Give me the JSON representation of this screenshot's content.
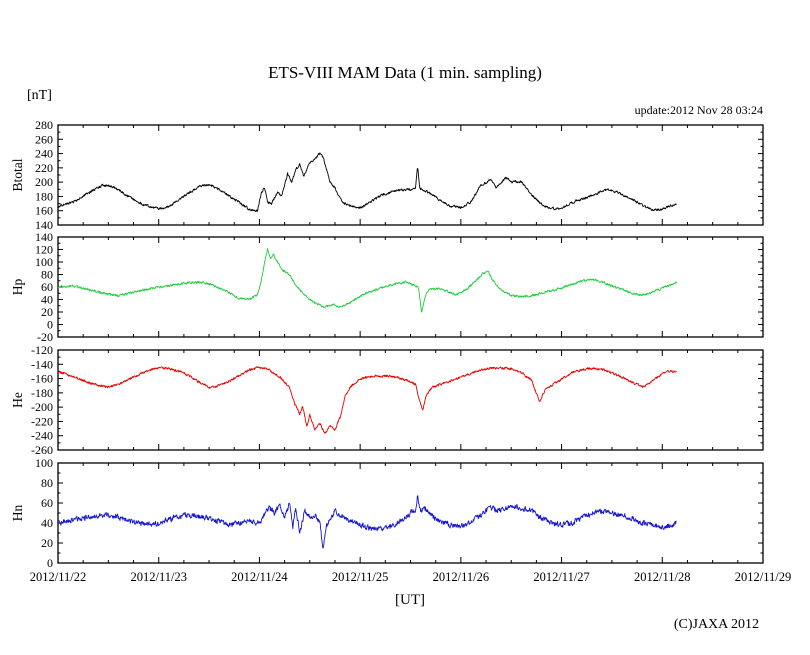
{
  "header": {
    "unit_label": "[nT]",
    "update_text": "update:2012 Nov 28 03:24"
  },
  "footer": {
    "copyright": "(C)JAXA 2012"
  },
  "chart_data": {
    "type": "line",
    "title": "ETS-VIII MAM Data (1 min. sampling)",
    "grid": "off",
    "legend": "none",
    "x": {
      "label": "[UT]",
      "range_days": [
        0,
        7
      ],
      "tick_labels": [
        "2012/11/22",
        "2012/11/23",
        "2012/11/24",
        "2012/11/25",
        "2012/11/26",
        "2012/11/27",
        "2012/11/28",
        "2012/11/29"
      ],
      "minor_ticks_per_day": 4,
      "data_end_day": 6.142
    },
    "panels": [
      {
        "name": "Btotal",
        "color": "#000000",
        "ylim": [
          140,
          280
        ],
        "yticks": [
          140,
          160,
          180,
          200,
          220,
          240,
          260,
          280
        ],
        "noise_amp": 1.5,
        "seed": 11,
        "points": [
          [
            0,
            166
          ],
          [
            0.15,
            172
          ],
          [
            0.3,
            185
          ],
          [
            0.45,
            196
          ],
          [
            0.55,
            193
          ],
          [
            0.7,
            180
          ],
          [
            0.85,
            168
          ],
          [
            1.0,
            163
          ],
          [
            1.1,
            166
          ],
          [
            1.25,
            180
          ],
          [
            1.4,
            194
          ],
          [
            1.5,
            196
          ],
          [
            1.6,
            190
          ],
          [
            1.75,
            176
          ],
          [
            1.9,
            162
          ],
          [
            1.98,
            160
          ],
          [
            2.02,
            185
          ],
          [
            2.05,
            193
          ],
          [
            2.08,
            172
          ],
          [
            2.12,
            170
          ],
          [
            2.18,
            186
          ],
          [
            2.22,
            180
          ],
          [
            2.28,
            212
          ],
          [
            2.32,
            200
          ],
          [
            2.36,
            218
          ],
          [
            2.4,
            225
          ],
          [
            2.44,
            208
          ],
          [
            2.5,
            228
          ],
          [
            2.55,
            232
          ],
          [
            2.6,
            241
          ],
          [
            2.63,
            235
          ],
          [
            2.66,
            222
          ],
          [
            2.7,
            200
          ],
          [
            2.75,
            192
          ],
          [
            2.82,
            172
          ],
          [
            2.9,
            167
          ],
          [
            3.0,
            164
          ],
          [
            3.1,
            172
          ],
          [
            3.2,
            181
          ],
          [
            3.35,
            188
          ],
          [
            3.5,
            190
          ],
          [
            3.55,
            192
          ],
          [
            3.57,
            224
          ],
          [
            3.59,
            192
          ],
          [
            3.7,
            184
          ],
          [
            3.8,
            174
          ],
          [
            3.9,
            166
          ],
          [
            4.0,
            165
          ],
          [
            4.1,
            172
          ],
          [
            4.2,
            196
          ],
          [
            4.3,
            203
          ],
          [
            4.35,
            192
          ],
          [
            4.45,
            207
          ],
          [
            4.5,
            200
          ],
          [
            4.6,
            201
          ],
          [
            4.7,
            183
          ],
          [
            4.8,
            169
          ],
          [
            4.9,
            163
          ],
          [
            5.0,
            164
          ],
          [
            5.15,
            174
          ],
          [
            5.3,
            181
          ],
          [
            5.45,
            190
          ],
          [
            5.55,
            186
          ],
          [
            5.7,
            176
          ],
          [
            5.8,
            168
          ],
          [
            5.9,
            161
          ],
          [
            6.0,
            162
          ],
          [
            6.1,
            168
          ],
          [
            6.142,
            170
          ]
        ]
      },
      {
        "name": "Hp",
        "color": "#1fcb3c",
        "ylim": [
          -20,
          140
        ],
        "yticks": [
          -20,
          0,
          20,
          40,
          60,
          80,
          100,
          120,
          140
        ],
        "noise_amp": 1.6,
        "seed": 22,
        "points": [
          [
            0,
            60
          ],
          [
            0.15,
            62
          ],
          [
            0.3,
            56
          ],
          [
            0.45,
            50
          ],
          [
            0.6,
            46
          ],
          [
            0.75,
            52
          ],
          [
            0.9,
            57
          ],
          [
            1.1,
            62
          ],
          [
            1.25,
            66
          ],
          [
            1.4,
            68
          ],
          [
            1.5,
            65
          ],
          [
            1.65,
            55
          ],
          [
            1.8,
            42
          ],
          [
            1.9,
            40
          ],
          [
            1.98,
            48
          ],
          [
            2.02,
            70
          ],
          [
            2.05,
            100
          ],
          [
            2.08,
            120
          ],
          [
            2.11,
            105
          ],
          [
            2.14,
            112
          ],
          [
            2.18,
            100
          ],
          [
            2.22,
            88
          ],
          [
            2.3,
            80
          ],
          [
            2.35,
            65
          ],
          [
            2.42,
            52
          ],
          [
            2.5,
            40
          ],
          [
            2.58,
            32
          ],
          [
            2.65,
            28
          ],
          [
            2.72,
            32
          ],
          [
            2.8,
            29
          ],
          [
            2.88,
            33
          ],
          [
            2.95,
            40
          ],
          [
            3.05,
            50
          ],
          [
            3.2,
            58
          ],
          [
            3.35,
            65
          ],
          [
            3.45,
            68
          ],
          [
            3.55,
            62
          ],
          [
            3.58,
            58
          ],
          [
            3.61,
            18
          ],
          [
            3.64,
            42
          ],
          [
            3.68,
            55
          ],
          [
            3.78,
            58
          ],
          [
            3.88,
            52
          ],
          [
            3.95,
            48
          ],
          [
            4.05,
            55
          ],
          [
            4.15,
            70
          ],
          [
            4.22,
            82
          ],
          [
            4.27,
            85
          ],
          [
            4.32,
            70
          ],
          [
            4.4,
            55
          ],
          [
            4.5,
            47
          ],
          [
            4.6,
            44
          ],
          [
            4.7,
            46
          ],
          [
            4.8,
            50
          ],
          [
            4.95,
            56
          ],
          [
            5.1,
            64
          ],
          [
            5.2,
            70
          ],
          [
            5.3,
            72
          ],
          [
            5.4,
            68
          ],
          [
            5.5,
            62
          ],
          [
            5.6,
            56
          ],
          [
            5.7,
            50
          ],
          [
            5.8,
            47
          ],
          [
            5.9,
            52
          ],
          [
            6.0,
            58
          ],
          [
            6.1,
            64
          ],
          [
            6.142,
            68
          ]
        ]
      },
      {
        "name": "He",
        "color": "#e60000",
        "ylim": [
          -260,
          -120
        ],
        "yticks": [
          -260,
          -240,
          -220,
          -200,
          -180,
          -160,
          -140,
          -120
        ],
        "noise_amp": 1.5,
        "seed": 33,
        "points": [
          [
            0,
            -150
          ],
          [
            0.1,
            -155
          ],
          [
            0.2,
            -160
          ],
          [
            0.35,
            -168
          ],
          [
            0.5,
            -172
          ],
          [
            0.6,
            -168
          ],
          [
            0.75,
            -158
          ],
          [
            0.9,
            -148
          ],
          [
            1.0,
            -145
          ],
          [
            1.1,
            -146
          ],
          [
            1.25,
            -152
          ],
          [
            1.4,
            -165
          ],
          [
            1.5,
            -172
          ],
          [
            1.6,
            -170
          ],
          [
            1.75,
            -160
          ],
          [
            1.9,
            -148
          ],
          [
            2.0,
            -144
          ],
          [
            2.1,
            -148
          ],
          [
            2.2,
            -158
          ],
          [
            2.3,
            -172
          ],
          [
            2.35,
            -195
          ],
          [
            2.4,
            -210
          ],
          [
            2.43,
            -198
          ],
          [
            2.47,
            -228
          ],
          [
            2.5,
            -210
          ],
          [
            2.55,
            -232
          ],
          [
            2.6,
            -222
          ],
          [
            2.65,
            -238
          ],
          [
            2.7,
            -226
          ],
          [
            2.75,
            -232
          ],
          [
            2.8,
            -215
          ],
          [
            2.85,
            -185
          ],
          [
            2.9,
            -172
          ],
          [
            3.0,
            -160
          ],
          [
            3.1,
            -157
          ],
          [
            3.3,
            -156
          ],
          [
            3.45,
            -162
          ],
          [
            3.55,
            -168
          ],
          [
            3.58,
            -185
          ],
          [
            3.62,
            -205
          ],
          [
            3.66,
            -182
          ],
          [
            3.72,
            -172
          ],
          [
            3.85,
            -166
          ],
          [
            4.0,
            -158
          ],
          [
            4.15,
            -150
          ],
          [
            4.3,
            -145
          ],
          [
            4.5,
            -146
          ],
          [
            4.6,
            -152
          ],
          [
            4.7,
            -162
          ],
          [
            4.78,
            -192
          ],
          [
            4.84,
            -175
          ],
          [
            4.95,
            -165
          ],
          [
            5.1,
            -152
          ],
          [
            5.25,
            -146
          ],
          [
            5.4,
            -147
          ],
          [
            5.55,
            -155
          ],
          [
            5.7,
            -165
          ],
          [
            5.82,
            -172
          ],
          [
            5.95,
            -158
          ],
          [
            6.05,
            -150
          ],
          [
            6.142,
            -150
          ]
        ]
      },
      {
        "name": "Hn",
        "color": "#1414d2",
        "ylim": [
          0,
          100
        ],
        "yticks": [
          0,
          20,
          40,
          60,
          80,
          100
        ],
        "noise_amp": 2.4,
        "seed": 44,
        "points": [
          [
            0,
            40
          ],
          [
            0.15,
            43
          ],
          [
            0.3,
            46
          ],
          [
            0.45,
            48
          ],
          [
            0.6,
            46
          ],
          [
            0.75,
            42
          ],
          [
            0.9,
            38
          ],
          [
            1.0,
            40
          ],
          [
            1.15,
            45
          ],
          [
            1.3,
            48
          ],
          [
            1.45,
            46
          ],
          [
            1.6,
            42
          ],
          [
            1.7,
            38
          ],
          [
            1.8,
            40
          ],
          [
            1.9,
            42
          ],
          [
            2.0,
            40
          ],
          [
            2.05,
            48
          ],
          [
            2.1,
            55
          ],
          [
            2.15,
            50
          ],
          [
            2.2,
            58
          ],
          [
            2.25,
            45
          ],
          [
            2.3,
            60
          ],
          [
            2.33,
            35
          ],
          [
            2.36,
            55
          ],
          [
            2.4,
            30
          ],
          [
            2.45,
            52
          ],
          [
            2.5,
            45
          ],
          [
            2.55,
            48
          ],
          [
            2.6,
            40
          ],
          [
            2.63,
            14
          ],
          [
            2.66,
            35
          ],
          [
            2.7,
            45
          ],
          [
            2.75,
            52
          ],
          [
            2.8,
            48
          ],
          [
            2.9,
            42
          ],
          [
            3.0,
            38
          ],
          [
            3.1,
            35
          ],
          [
            3.2,
            34
          ],
          [
            3.3,
            36
          ],
          [
            3.4,
            42
          ],
          [
            3.5,
            50
          ],
          [
            3.55,
            52
          ],
          [
            3.57,
            67
          ],
          [
            3.6,
            52
          ],
          [
            3.65,
            55
          ],
          [
            3.7,
            48
          ],
          [
            3.8,
            42
          ],
          [
            3.9,
            38
          ],
          [
            4.0,
            37
          ],
          [
            4.1,
            40
          ],
          [
            4.2,
            48
          ],
          [
            4.3,
            55
          ],
          [
            4.4,
            52
          ],
          [
            4.5,
            58
          ],
          [
            4.6,
            55
          ],
          [
            4.7,
            52
          ],
          [
            4.8,
            45
          ],
          [
            4.9,
            40
          ],
          [
            5.0,
            38
          ],
          [
            5.1,
            40
          ],
          [
            5.2,
            45
          ],
          [
            5.3,
            50
          ],
          [
            5.4,
            52
          ],
          [
            5.5,
            50
          ],
          [
            5.6,
            48
          ],
          [
            5.7,
            45
          ],
          [
            5.8,
            40
          ],
          [
            5.9,
            38
          ],
          [
            6.0,
            36
          ],
          [
            6.1,
            38
          ],
          [
            6.142,
            40
          ]
        ]
      }
    ]
  }
}
